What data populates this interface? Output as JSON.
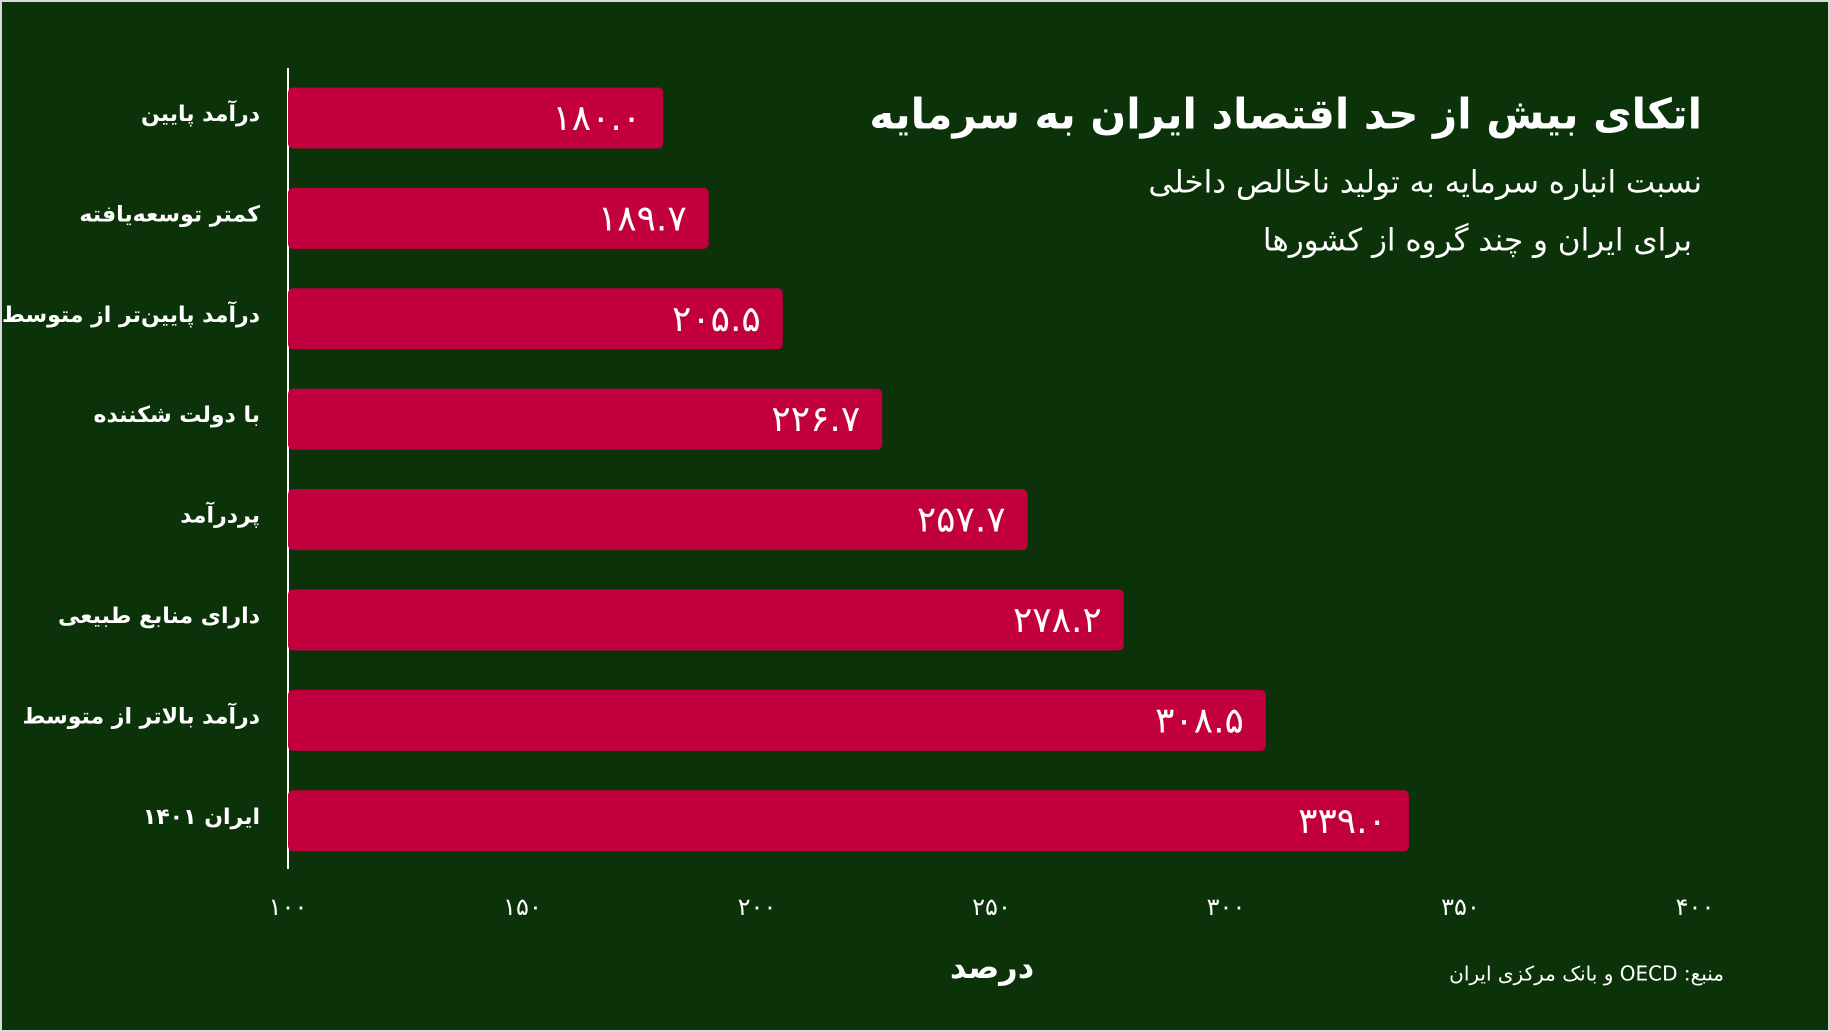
{
  "chart_data": {
    "type": "bar",
    "orientation": "horizontal",
    "title": "اتکای بیش از حد اقتصاد ایران به سرمایه",
    "subtitle": [
      "نسبت انباره سرمایه به تولید ناخالص داخلی",
      "برای ایران و چند گروه از کشورها"
    ],
    "source": "منبع: OECD و بانک مرکزی ایران",
    "x_label": "درصد",
    "categories": [
      "درآمد پایین",
      "کمتر توسعه‌یافته",
      "درآمد پایین‌تر از متوسط",
      "با دولت شکننده",
      "پردرآمد",
      "دارای منابع طبیعی",
      "درآمد بالاتر از متوسط",
      "ایران ۱۴۰۱"
    ],
    "values": [
      180.0,
      189.7,
      205.5,
      226.7,
      257.7,
      278.2,
      308.5,
      339.0
    ],
    "value_labels": [
      "۱۸۰.۰",
      "۱۸۹.۷",
      "۲۰۵.۵",
      "۲۲۶.۷",
      "۲۵۷.۷",
      "۲۷۸.۲",
      "۳۰۸.۵",
      "۳۳۹.۰"
    ],
    "color": "#c2003d",
    "xlim": [
      100,
      400
    ],
    "xticks": [
      {
        "value": 100,
        "label": "۱۰۰"
      },
      {
        "value": 150,
        "label": "۱۵۰"
      },
      {
        "value": 200,
        "label": "۲۰۰"
      },
      {
        "value": 250,
        "label": "۲۵۰"
      },
      {
        "value": 300,
        "label": "۳۰۰"
      },
      {
        "value": 350,
        "label": "۳۵۰"
      },
      {
        "value": 400,
        "label": "۴۰۰"
      }
    ],
    "grid": false
  }
}
